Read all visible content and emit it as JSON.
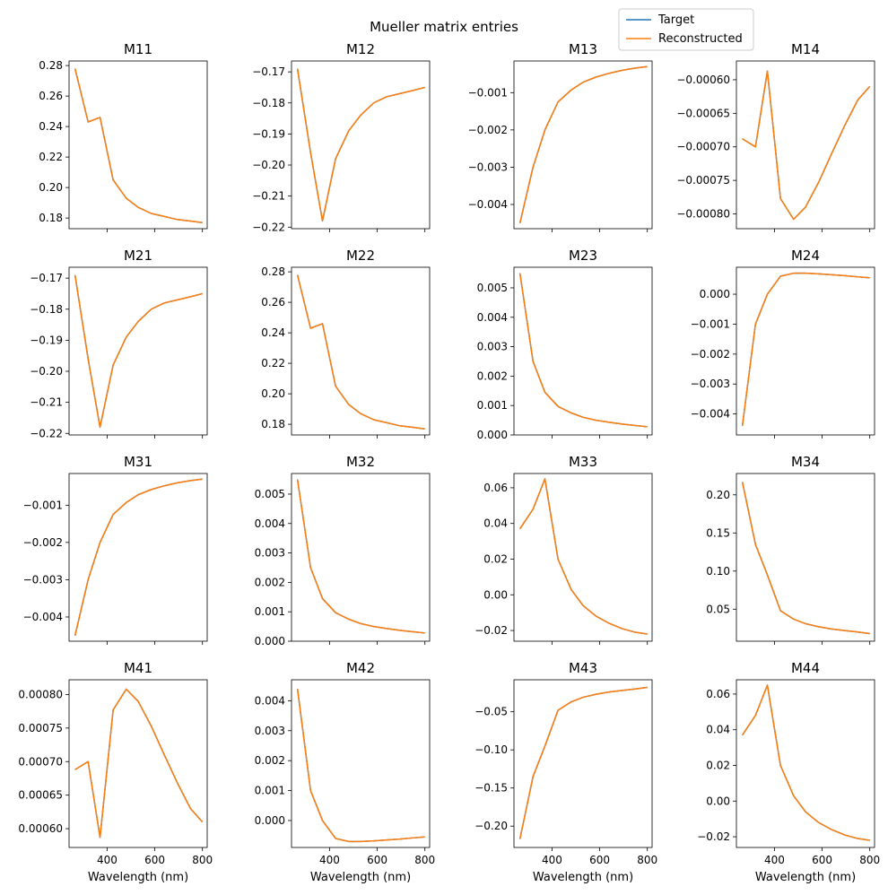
{
  "figure": {
    "suptitle": "Mueller matrix entries",
    "xlabel": "Wavelength (nm)"
  },
  "legend": {
    "placement": "top-right",
    "entries": [
      {
        "label": "Target",
        "color": "#1f77b4"
      },
      {
        "label": "Reconstructed",
        "color": "#ff7f0e"
      }
    ]
  },
  "chart_data": {
    "type": "line",
    "x": [
      265,
      320,
      370,
      425,
      480,
      530,
      585,
      640,
      695,
      750,
      800
    ],
    "xlim": [
      240,
      820
    ],
    "xticks": [
      400,
      600,
      800
    ],
    "panels": [
      {
        "title": "M11",
        "ylim": [
          0.173,
          0.283
        ],
        "yticks": [
          0.18,
          0.2,
          0.22,
          0.24,
          0.26,
          0.28
        ],
        "ydec": 2,
        "series": [
          {
            "name": "Target",
            "values": [
              0.278,
              0.243,
              0.246,
              0.205,
              0.193,
              0.187,
              0.183,
              0.181,
              0.179,
              0.178,
              0.177
            ]
          },
          {
            "name": "Reconstructed",
            "values": [
              0.278,
              0.243,
              0.246,
              0.205,
              0.193,
              0.187,
              0.183,
              0.181,
              0.179,
              0.178,
              0.177
            ]
          }
        ]
      },
      {
        "title": "M12",
        "ylim": [
          -0.2205,
          -0.1665
        ],
        "yticks": [
          -0.22,
          -0.21,
          -0.2,
          -0.19,
          -0.18,
          -0.17
        ],
        "ydec": 2,
        "series": [
          {
            "name": "Target",
            "values": [
              -0.169,
              -0.196,
              -0.218,
              -0.198,
              -0.189,
              -0.184,
              -0.18,
              -0.178,
              -0.177,
              -0.176,
              -0.175
            ]
          },
          {
            "name": "Reconstructed",
            "values": [
              -0.169,
              -0.196,
              -0.218,
              -0.198,
              -0.189,
              -0.184,
              -0.18,
              -0.178,
              -0.177,
              -0.176,
              -0.175
            ]
          }
        ]
      },
      {
        "title": "M13",
        "ylim": [
          -0.00465,
          -0.00015
        ],
        "yticks": [
          -0.004,
          -0.003,
          -0.002,
          -0.001
        ],
        "ydec": 3,
        "series": [
          {
            "name": "Target",
            "values": [
              -0.0045,
              -0.003,
              -0.002,
              -0.00125,
              -0.00093,
              -0.00072,
              -0.00058,
              -0.00048,
              -0.0004,
              -0.00034,
              -0.0003
            ]
          },
          {
            "name": "Reconstructed",
            "values": [
              -0.0045,
              -0.003,
              -0.002,
              -0.00125,
              -0.00093,
              -0.00072,
              -0.00058,
              -0.00048,
              -0.0004,
              -0.00034,
              -0.0003
            ]
          }
        ]
      },
      {
        "title": "M14",
        "ylim": [
          -0.000822,
          -0.000572
        ],
        "yticks": [
          -0.0008,
          -0.00075,
          -0.0007,
          -0.00065,
          -0.0006
        ],
        "ydec": 5,
        "series": [
          {
            "name": "Target",
            "values": [
              -0.000688,
              -0.0007,
              -0.000587,
              -0.000777,
              -0.000808,
              -0.00079,
              -0.000753,
              -0.00071,
              -0.000668,
              -0.00063,
              -0.00061
            ]
          },
          {
            "name": "Reconstructed",
            "values": [
              -0.000688,
              -0.0007,
              -0.000587,
              -0.000777,
              -0.000808,
              -0.00079,
              -0.000753,
              -0.00071,
              -0.000668,
              -0.00063,
              -0.00061
            ]
          }
        ]
      },
      {
        "title": "M21",
        "ylim": [
          -0.2205,
          -0.1665
        ],
        "yticks": [
          -0.22,
          -0.21,
          -0.2,
          -0.19,
          -0.18,
          -0.17
        ],
        "ydec": 2,
        "series": [
          {
            "name": "Target",
            "values": [
              -0.169,
              -0.196,
              -0.218,
              -0.198,
              -0.189,
              -0.184,
              -0.18,
              -0.178,
              -0.177,
              -0.176,
              -0.175
            ]
          },
          {
            "name": "Reconstructed",
            "values": [
              -0.169,
              -0.196,
              -0.218,
              -0.198,
              -0.189,
              -0.184,
              -0.18,
              -0.178,
              -0.177,
              -0.176,
              -0.175
            ]
          }
        ]
      },
      {
        "title": "M22",
        "ylim": [
          0.173,
          0.283
        ],
        "yticks": [
          0.18,
          0.2,
          0.22,
          0.24,
          0.26,
          0.28
        ],
        "ydec": 2,
        "series": [
          {
            "name": "Target",
            "values": [
              0.278,
              0.243,
              0.246,
              0.205,
              0.193,
              0.187,
              0.183,
              0.181,
              0.179,
              0.178,
              0.177
            ]
          },
          {
            "name": "Reconstructed",
            "values": [
              0.278,
              0.243,
              0.246,
              0.205,
              0.193,
              0.187,
              0.183,
              0.181,
              0.179,
              0.178,
              0.177
            ]
          }
        ]
      },
      {
        "title": "M23",
        "ylim": [
          0.0,
          0.0057
        ],
        "yticks": [
          0.0,
          0.001,
          0.002,
          0.003,
          0.004,
          0.005
        ],
        "ydec": 3,
        "series": [
          {
            "name": "Target",
            "values": [
              0.0055,
              0.0025,
              0.00145,
              0.00097,
              0.00075,
              0.0006,
              0.0005,
              0.00043,
              0.00037,
              0.00032,
              0.00028
            ]
          },
          {
            "name": "Reconstructed",
            "values": [
              0.0055,
              0.0025,
              0.00145,
              0.00097,
              0.00075,
              0.0006,
              0.0005,
              0.00043,
              0.00037,
              0.00032,
              0.00028
            ]
          }
        ]
      },
      {
        "title": "M24",
        "ylim": [
          -0.0047,
          0.0009
        ],
        "yticks": [
          -0.004,
          -0.003,
          -0.002,
          -0.001,
          0.0
        ],
        "ydec": 3,
        "series": [
          {
            "name": "Target",
            "values": [
              -0.0044,
              -0.001,
              0.0,
              0.0006,
              0.0007,
              0.0007,
              0.00068,
              0.00065,
              0.00062,
              0.00058,
              0.00055
            ]
          },
          {
            "name": "Reconstructed",
            "values": [
              -0.0044,
              -0.001,
              0.0,
              0.0006,
              0.0007,
              0.0007,
              0.00068,
              0.00065,
              0.00062,
              0.00058,
              0.00055
            ]
          }
        ]
      },
      {
        "title": "M31",
        "ylim": [
          -0.00465,
          -0.00015
        ],
        "yticks": [
          -0.004,
          -0.003,
          -0.002,
          -0.001
        ],
        "ydec": 3,
        "series": [
          {
            "name": "Target",
            "values": [
              -0.0045,
              -0.003,
              -0.002,
              -0.00125,
              -0.00093,
              -0.00072,
              -0.00058,
              -0.00048,
              -0.0004,
              -0.00034,
              -0.0003
            ]
          },
          {
            "name": "Reconstructed",
            "values": [
              -0.0045,
              -0.003,
              -0.002,
              -0.00125,
              -0.00093,
              -0.00072,
              -0.00058,
              -0.00048,
              -0.0004,
              -0.00034,
              -0.0003
            ]
          }
        ]
      },
      {
        "title": "M32",
        "ylim": [
          0.0,
          0.0057
        ],
        "yticks": [
          0.0,
          0.001,
          0.002,
          0.003,
          0.004,
          0.005
        ],
        "ydec": 3,
        "series": [
          {
            "name": "Target",
            "values": [
              0.0055,
              0.0025,
              0.00145,
              0.00097,
              0.00075,
              0.0006,
              0.0005,
              0.00043,
              0.00037,
              0.00032,
              0.00028
            ]
          },
          {
            "name": "Reconstructed",
            "values": [
              0.0055,
              0.0025,
              0.00145,
              0.00097,
              0.00075,
              0.0006,
              0.0005,
              0.00043,
              0.00037,
              0.00032,
              0.00028
            ]
          }
        ]
      },
      {
        "title": "M33",
        "ylim": [
          -0.026,
          0.068
        ],
        "yticks": [
          -0.02,
          0.0,
          0.02,
          0.04,
          0.06
        ],
        "ydec": 2,
        "series": [
          {
            "name": "Target",
            "values": [
              0.037,
              0.048,
              0.065,
              0.02,
              0.003,
              -0.006,
              -0.012,
              -0.016,
              -0.019,
              -0.021,
              -0.022
            ]
          },
          {
            "name": "Reconstructed",
            "values": [
              0.037,
              0.048,
              0.065,
              0.02,
              0.003,
              -0.006,
              -0.012,
              -0.016,
              -0.019,
              -0.021,
              -0.022
            ]
          }
        ]
      },
      {
        "title": "M34",
        "ylim": [
          0.008,
          0.228
        ],
        "yticks": [
          0.05,
          0.1,
          0.15,
          0.2
        ],
        "ydec": 2,
        "series": [
          {
            "name": "Target",
            "values": [
              0.217,
              0.135,
              0.095,
              0.048,
              0.037,
              0.031,
              0.027,
              0.024,
              0.022,
              0.02,
              0.018
            ]
          },
          {
            "name": "Reconstructed",
            "values": [
              0.217,
              0.135,
              0.095,
              0.048,
              0.037,
              0.031,
              0.027,
              0.024,
              0.022,
              0.02,
              0.018
            ]
          }
        ]
      },
      {
        "title": "M41",
        "ylim": [
          0.000572,
          0.000822
        ],
        "yticks": [
          0.0006,
          0.00065,
          0.0007,
          0.00075,
          0.0008
        ],
        "ydec": 5,
        "series": [
          {
            "name": "Target",
            "values": [
              0.000688,
              0.0007,
              0.000587,
              0.000777,
              0.000808,
              0.00079,
              0.000753,
              0.00071,
              0.000668,
              0.00063,
              0.00061
            ]
          },
          {
            "name": "Reconstructed",
            "values": [
              0.000688,
              0.0007,
              0.000587,
              0.000777,
              0.000808,
              0.00079,
              0.000753,
              0.00071,
              0.000668,
              0.00063,
              0.00061
            ]
          }
        ]
      },
      {
        "title": "M42",
        "ylim": [
          -0.0009,
          0.0047
        ],
        "yticks": [
          0.0,
          0.001,
          0.002,
          0.003,
          0.004
        ],
        "ydec": 3,
        "series": [
          {
            "name": "Target",
            "values": [
              0.0044,
              0.001,
              0.0,
              -0.0006,
              -0.0007,
              -0.0007,
              -0.00068,
              -0.00065,
              -0.00062,
              -0.00058,
              -0.00055
            ]
          },
          {
            "name": "Reconstructed",
            "values": [
              0.0044,
              0.001,
              0.0,
              -0.0006,
              -0.0007,
              -0.0007,
              -0.00068,
              -0.00065,
              -0.00062,
              -0.00058,
              -0.00055
            ]
          }
        ]
      },
      {
        "title": "M43",
        "ylim": [
          -0.228,
          -0.008
        ],
        "yticks": [
          -0.2,
          -0.15,
          -0.1,
          -0.05
        ],
        "ydec": 2,
        "series": [
          {
            "name": "Target",
            "values": [
              -0.217,
              -0.135,
              -0.095,
              -0.048,
              -0.037,
              -0.031,
              -0.027,
              -0.024,
              -0.022,
              -0.02,
              -0.018
            ]
          },
          {
            "name": "Reconstructed",
            "values": [
              -0.217,
              -0.135,
              -0.095,
              -0.048,
              -0.037,
              -0.031,
              -0.027,
              -0.024,
              -0.022,
              -0.02,
              -0.018
            ]
          }
        ]
      },
      {
        "title": "M44",
        "ylim": [
          -0.026,
          0.068
        ],
        "yticks": [
          -0.02,
          0.0,
          0.02,
          0.04,
          0.06
        ],
        "ydec": 2,
        "series": [
          {
            "name": "Target",
            "values": [
              0.037,
              0.048,
              0.065,
              0.02,
              0.003,
              -0.006,
              -0.012,
              -0.016,
              -0.019,
              -0.021,
              -0.022
            ]
          },
          {
            "name": "Reconstructed",
            "values": [
              0.037,
              0.048,
              0.065,
              0.02,
              0.003,
              -0.006,
              -0.012,
              -0.016,
              -0.019,
              -0.021,
              -0.022
            ]
          }
        ]
      }
    ]
  }
}
